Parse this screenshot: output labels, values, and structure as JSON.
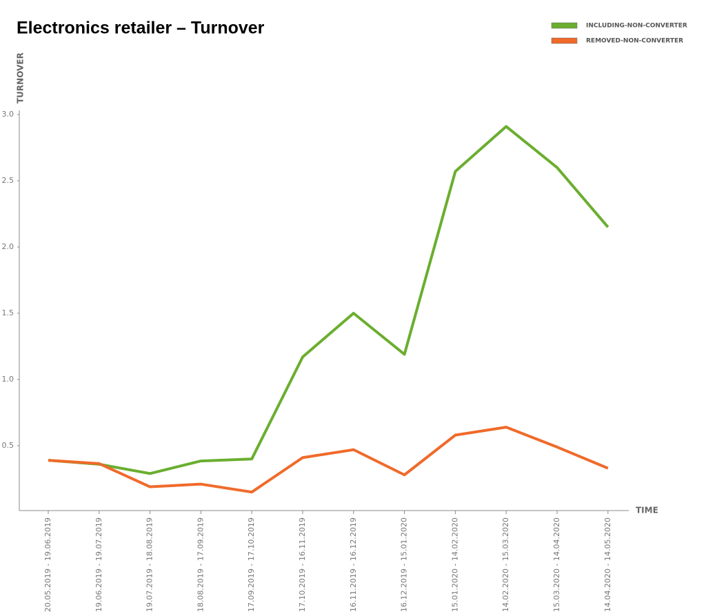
{
  "chart_data": {
    "type": "line",
    "title": "Electronics retailer – Turnover",
    "y_label": "TURNOVER",
    "x_label": "TIME",
    "categories": [
      "20.05.2019 - 19.06.2019",
      "19.06.2019 - 19.07.2019",
      "19.07.2019 - 18.08.2019",
      "18.08.2019 - 17.09.2019",
      "17.09.2019 - 17.10.2019",
      "17.10.2019 - 16.11.2019",
      "16.11.2019 - 16.12.2019",
      "16.12.2019 - 15.01.2020",
      "15.01.2020 - 14.02.2020",
      "14.02.2020 - 15.03.2020",
      "15.03.2020 - 14.04.2020",
      "14.04.2020 - 14.05.2020"
    ],
    "series": [
      {
        "name": "INCLUDING-NON-CONVERTER",
        "color": "#6aae2f",
        "values": [
          0.39,
          0.36,
          0.29,
          0.385,
          0.4,
          1.17,
          1.5,
          1.19,
          2.57,
          2.91,
          2.6,
          2.15
        ]
      },
      {
        "name": "REMOVED-NON-CONVERTER",
        "color": "#f06a2a",
        "values": [
          0.39,
          0.365,
          0.19,
          0.21,
          0.15,
          0.41,
          0.47,
          0.28,
          0.58,
          0.64,
          0.49,
          0.33
        ]
      }
    ],
    "ylim": [
      0,
      3.0
    ],
    "yticks": [
      0.5,
      {
        "value": 1,
        "label": "1.0"
      },
      1.5,
      {
        "value": 2,
        "label": "2.0"
      },
      2.5,
      {
        "value": 3,
        "label": "3.0"
      }
    ],
    "legend": "top-right"
  }
}
